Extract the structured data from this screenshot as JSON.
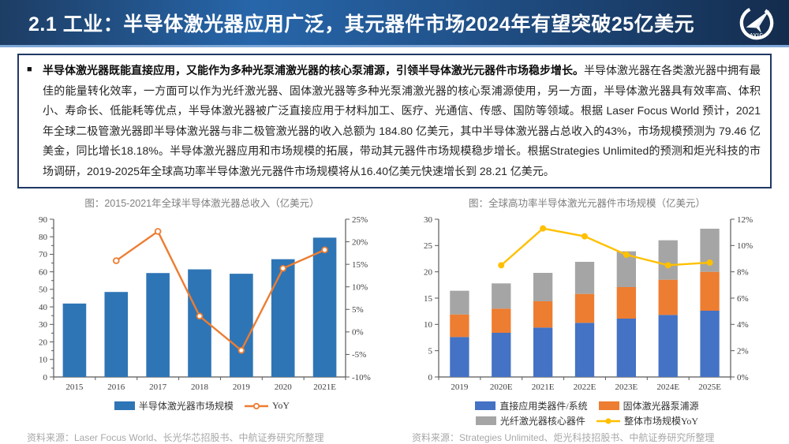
{
  "header": {
    "section_title": "2.1 工业：半导体激光器应用广泛，其元器件市场2024年有望突破25亿美元",
    "logo_label": "AVIC"
  },
  "summary": {
    "bullet": "■",
    "lead_bold": "半导体激光器既能直接应用，又能作为多种光泵浦激光器的核心泵浦源，引领半导体激光元器件市场稳步增长。",
    "body": "半导体激光器在各类激光器中拥有最佳的能量转化效率，一方面可以作为光纤激光器、固体激光器等多种光泵浦激光器的核心泵浦源使用，另一方面，半导体激光器具有效率高、体积小、寿命长、低能耗等优点，半导体激光器被广泛直接应用于材料加工、医疗、光通信、传感、国防等领域。根据 Laser Focus World 预计，2021 年全球二极管激光器即半导体激光器与非二极管激光器的收入总额为 184.80 亿美元，其中半导体激光器占总收入的43%，市场规模预测为 79.46 亿美金，同比增长18.18%。半导体激光器应用和市场规模的拓展，带动其元器件市场规模稳步增长。根据Strategies Unlimited的预测和炬光科技的市场调研，2019-2025年全球高功率半导体激光元器件市场规模将从16.40亿美元快速增长到 28.21 亿美元。"
  },
  "chart_data": [
    {
      "name": "semiconductor-laser-revenue",
      "type": "bar",
      "title": "图：2015-2021年全球半导体激光器总收入（亿美元）",
      "categories": [
        "2015",
        "2016",
        "2017",
        "2018",
        "2019",
        "2020",
        "2021E"
      ],
      "series": [
        {
          "name": "半导体激光器市场规模",
          "type": "bar",
          "color": "#2E75B6",
          "axis": "left",
          "values": [
            41.9,
            48.5,
            59.3,
            61.4,
            58.9,
            67.2,
            79.5
          ]
        },
        {
          "name": "YoY",
          "type": "line",
          "color": "#ED7D31",
          "axis": "right",
          "marker": "circle-open",
          "values": [
            null,
            15.8,
            22.3,
            3.5,
            -4.1,
            14.1,
            18.2
          ]
        }
      ],
      "left_axis": {
        "min": 0,
        "max": 90,
        "step": 10,
        "suffix": ""
      },
      "right_axis": {
        "min": -10,
        "max": 25,
        "step": 5,
        "suffix": "%"
      },
      "bar_ratio": 0.56,
      "minor_ticks": true,
      "grid": false,
      "legend_position": "bottom",
      "legend_cols": 0
    },
    {
      "name": "high-power-component-market",
      "type": "stacked-bar",
      "title": "图：全球高功率半导体激光元器件市场规模（亿美元）",
      "categories": [
        "2019",
        "2020E",
        "2021E",
        "2022E",
        "2023E",
        "2024E",
        "2025E"
      ],
      "series": [
        {
          "name": "直接应用类器件/系统",
          "type": "bar",
          "color": "#4472C4",
          "axis": "left",
          "values": [
            7.6,
            8.4,
            9.4,
            10.3,
            11.1,
            11.8,
            12.6
          ]
        },
        {
          "name": "固体激光器泵浦源",
          "type": "bar",
          "color": "#ED7D31",
          "axis": "left",
          "values": [
            4.3,
            4.6,
            5.0,
            5.5,
            6.0,
            6.7,
            7.4
          ]
        },
        {
          "name": "光纤激光器核心器件",
          "type": "bar",
          "color": "#A5A5A5",
          "axis": "left",
          "values": [
            4.5,
            4.8,
            5.4,
            6.1,
            6.8,
            7.5,
            8.2
          ]
        },
        {
          "name": "整体市场规模YoY",
          "type": "line",
          "color": "#FFC000",
          "axis": "right",
          "marker": "circle-solid",
          "values": [
            null,
            8.5,
            11.3,
            10.7,
            9.3,
            8.5,
            8.7
          ]
        }
      ],
      "left_axis": {
        "min": 0,
        "max": 30,
        "step": 5,
        "suffix": ""
      },
      "right_axis": {
        "min": 0,
        "max": 12,
        "step": 2,
        "suffix": "%"
      },
      "bar_ratio": 0.46,
      "minor_ticks": false,
      "grid": false,
      "legend_position": "bottom",
      "legend_cols": 2
    }
  ],
  "sources": {
    "left": "资料来源：Laser Focus World、长光华芯招股书、中航证券研究所整理",
    "right": "资料来源：Strategies Unlimited、炬光科技招股书、中航证券研究所整理"
  },
  "colors": {
    "header_gradient_start": "#1d3d64",
    "header_gradient_mid": "#2766aa",
    "header_gradient_end": "#142c4d",
    "header_accent_line": "#7da7d8",
    "box_border": "#1f3864",
    "bar_blue": "#2E75B6",
    "line_orange": "#ED7D31",
    "stack_blue": "#4472C4",
    "stack_orange": "#ED7D31",
    "stack_gray": "#A5A5A5",
    "line_yellow": "#FFC000"
  }
}
